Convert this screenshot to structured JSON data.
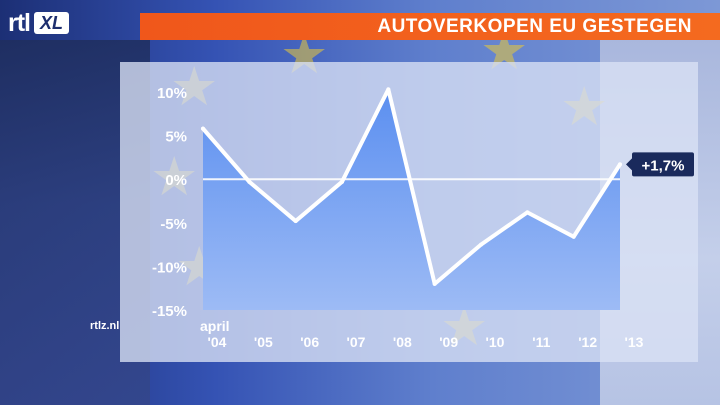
{
  "branding": {
    "logo_main": "rtl",
    "logo_badge": "XL",
    "website": "rtlz.nl"
  },
  "header": {
    "title": "AUTOVERKOPEN EU GESTEGEN"
  },
  "decor": {
    "stars": [
      "★",
      "★",
      "★",
      "★",
      "★",
      "★",
      "★"
    ]
  },
  "chart_data": {
    "type": "area",
    "title": "AUTOVERKOPEN EU GESTEGEN",
    "xlabel": "",
    "ylabel": "",
    "x_prefix_label": "april",
    "categories": [
      "'04",
      "'05",
      "'06",
      "'07",
      "'08",
      "'09",
      "'10",
      "'11",
      "'12",
      "'13"
    ],
    "y_ticks": [
      10,
      5,
      0,
      -5,
      -10,
      -15
    ],
    "y_tick_labels": [
      "10%",
      "5%",
      "0%",
      "-5%",
      "-10%",
      "-15%"
    ],
    "ylim": [
      -15,
      10
    ],
    "grid": false,
    "series": [
      {
        "values": [
          5.8,
          -0.3,
          -4.8,
          -0.3,
          10.3,
          -12.0,
          -7.5,
          -3.8,
          -6.6,
          1.7
        ]
      }
    ],
    "annotation": {
      "label": "+1,7%",
      "value": 1.7
    },
    "colors": {
      "fill_top": "#5b8ff0",
      "fill_bottom": "#9dbbf5",
      "line": "#ffffff",
      "text": "#ffffff",
      "label_bg": "#1a2a5c",
      "zero_line": "#ffffff"
    }
  }
}
